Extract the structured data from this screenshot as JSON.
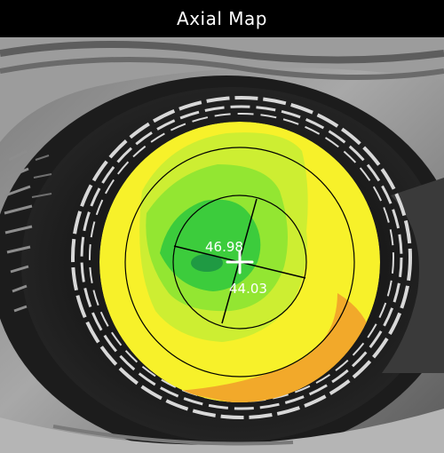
{
  "title": "Axial Map",
  "map": {
    "image_type": "corneal-topography-axial-curvature-over-grayscale-eye-image",
    "readings": {
      "k_steep": "46.98",
      "k_flat": "44.03"
    },
    "colors": {
      "background": "#000000",
      "title_text": "#ffffff",
      "color_yellow": "#f7f12a",
      "color_yellow_green": "#cdee32",
      "color_light_green": "#93e632",
      "color_green": "#3ccc3c",
      "color_dark_green": "#1f9a43",
      "color_orange": "#f2a92a",
      "center_cross": "#ffffff"
    }
  }
}
